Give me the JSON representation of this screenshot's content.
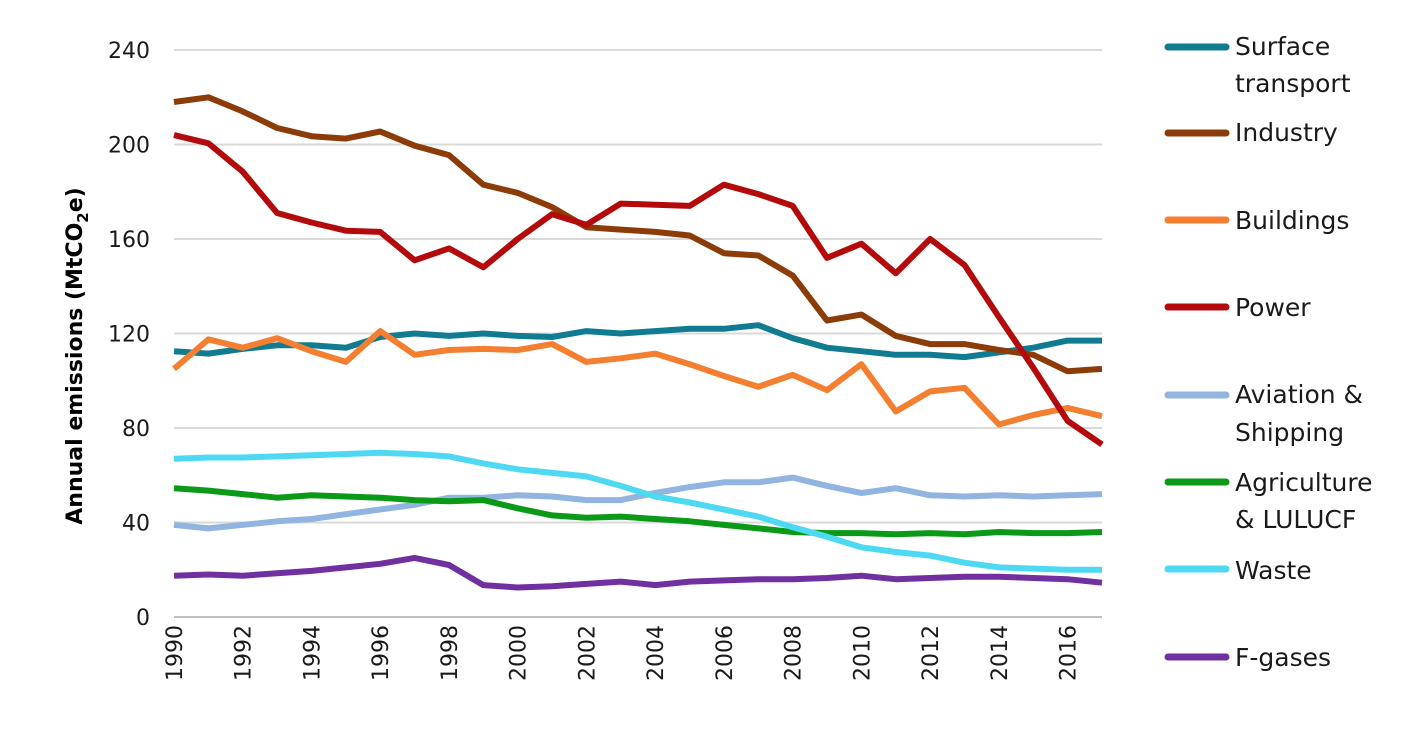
{
  "chart_data": {
    "type": "line",
    "title": "",
    "xlabel": "",
    "ylabel": {
      "main": "Annual emissions (MtCO",
      "sub": "2",
      "end": "e)"
    },
    "x": [
      1990,
      1991,
      1992,
      1993,
      1994,
      1995,
      1996,
      1997,
      1998,
      1999,
      2000,
      2001,
      2002,
      2003,
      2004,
      2005,
      2006,
      2007,
      2008,
      2009,
      2010,
      2011,
      2012,
      2013,
      2014,
      2015,
      2016,
      2017
    ],
    "xlim": [
      1990,
      2017
    ],
    "ylim": [
      0,
      240
    ],
    "yticks": [
      "0",
      "40",
      "80",
      "120",
      "160",
      "200",
      "240"
    ],
    "xticks": [
      "1990",
      "1992",
      "1994",
      "1996",
      "1998",
      "2000",
      "2002",
      "2004",
      "2006",
      "2008",
      "2010",
      "2012",
      "2014",
      "2016"
    ],
    "grid": true,
    "legend_position": "right",
    "series": [
      {
        "name": "Surface transport",
        "legend_lines": [
          "Surface",
          "transport"
        ],
        "color": "#117c91",
        "values": [
          112.5,
          111.5,
          113.5,
          115,
          115,
          114,
          118.5,
          120,
          119,
          120,
          119,
          118.5,
          121,
          120,
          121,
          122,
          122,
          123.5,
          118,
          114,
          112.5,
          111,
          111,
          110,
          112,
          114,
          117,
          117
        ]
      },
      {
        "name": "Industry",
        "legend_lines": [
          "Industry"
        ],
        "color": "#8b3c08",
        "values": [
          218,
          220,
          214,
          207,
          203.5,
          202.5,
          205.5,
          199.5,
          195.5,
          183,
          179.5,
          173.5,
          165,
          164,
          163,
          161.5,
          154,
          153,
          144.5,
          125.5,
          128,
          119,
          115.5,
          115.5,
          113,
          111,
          104,
          105
        ]
      },
      {
        "name": "Buildings",
        "legend_lines": [
          "Buildings"
        ],
        "color": "#f47f31",
        "values": [
          105,
          117.5,
          114,
          118,
          112.5,
          108,
          121,
          111,
          113,
          113.5,
          113,
          115.5,
          108,
          109.5,
          111.5,
          107,
          102,
          97.5,
          102.5,
          96,
          107,
          87,
          95.5,
          97,
          81.5,
          85.5,
          88.5,
          85
        ]
      },
      {
        "name": "Power",
        "legend_lines": [
          "Power"
        ],
        "color": "#b30a0b",
        "values": [
          204,
          200.5,
          188.5,
          171,
          167,
          163.5,
          163,
          151,
          156,
          148,
          160,
          170.5,
          166,
          175,
          174.5,
          174,
          183,
          179,
          174,
          152,
          158,
          145.5,
          160,
          149,
          127,
          105.5,
          83,
          73
        ]
      },
      {
        "name": "Aviation & Shipping",
        "legend_lines": [
          "Aviation &",
          "Shipping"
        ],
        "color": "#92b4e0",
        "values": [
          39,
          37.5,
          39,
          40.5,
          41.5,
          43.5,
          45.5,
          47.5,
          50.5,
          50.5,
          51.5,
          51,
          49.5,
          49.5,
          52.5,
          55,
          57,
          57,
          59,
          55.5,
          52.5,
          54.5,
          51.5,
          51,
          51.5,
          51,
          51.5,
          52
        ]
      },
      {
        "name": "Agriculture & LULUCF",
        "legend_lines": [
          "Agriculture",
          "& LULUCF"
        ],
        "color": "#0a9a17",
        "values": [
          54.5,
          53.5,
          52,
          50.5,
          51.5,
          51,
          50.5,
          49.5,
          49,
          49.5,
          46,
          43,
          42,
          42.5,
          41.5,
          40.5,
          39,
          37.5,
          36,
          35.5,
          35.5,
          35,
          35.5,
          35,
          36,
          35.5,
          35.5,
          36
        ]
      },
      {
        "name": "Waste",
        "legend_lines": [
          "Waste"
        ],
        "color": "#4dd9f2",
        "values": [
          67,
          67.5,
          67.5,
          68,
          68.5,
          69,
          69.5,
          69,
          68,
          65,
          62.5,
          61,
          59.5,
          55.5,
          51,
          48.5,
          45.5,
          42.5,
          38,
          34,
          29.5,
          27.5,
          26,
          23,
          21,
          20.5,
          20,
          20
        ]
      },
      {
        "name": "F-gases",
        "legend_lines": [
          "F-gases"
        ],
        "color": "#7030a0",
        "values": [
          17.5,
          18,
          17.5,
          18.5,
          19.5,
          21,
          22.5,
          25,
          22,
          13.5,
          12.5,
          13,
          14,
          15,
          13.5,
          15,
          15.5,
          16,
          16,
          16.5,
          17.5,
          16,
          16.5,
          17,
          17,
          16.5,
          16,
          14.5
        ]
      }
    ]
  }
}
